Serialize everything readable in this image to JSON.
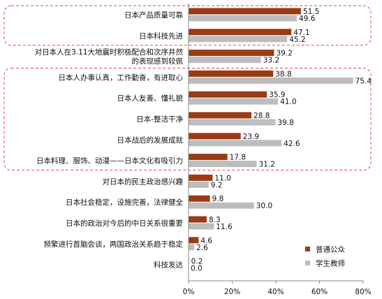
{
  "chart_data": {
    "type": "bar",
    "orientation": "horizontal",
    "title": "",
    "xlabel": "",
    "ylabel": "",
    "xlim": [
      0,
      80
    ],
    "x_ticks": [
      "0%",
      "20%",
      "40%",
      "60%",
      "80%"
    ],
    "categories": [
      [
        "日本产品质量可靠"
      ],
      [
        "日本科技先进"
      ],
      [
        "对日本人在3.11大地震时积极配合和次序井然",
        "的表现感到较佩"
      ],
      [
        "日本人办事认真，工作勤奋，有进取心"
      ],
      [
        "日本人友善、懂礼貌"
      ],
      [
        "日本-整洁干净"
      ],
      [
        "日本战后的发展成就"
      ],
      [
        "日本料理、服饰、动漫——日本文化有吸引力"
      ],
      [
        "对日本的民主政治感兴趣"
      ],
      [
        "日本社会稳定，设施完善，法律健全"
      ],
      [
        "日本的政治对今后的中日关系很重要"
      ],
      [
        "频繁进行首脑会谈，两国政治关系趋于稳定"
      ],
      [
        "科技发达"
      ]
    ],
    "series": [
      {
        "name": "普通公众",
        "color": "#9B3A14",
        "values": [
          51.5,
          47.1,
          39.2,
          38.8,
          35.9,
          28.8,
          23.9,
          17.8,
          11.0,
          9.8,
          8.3,
          4.6,
          0.2
        ],
        "labels": [
          "51.5",
          "47.1",
          "39.2",
          "38.8",
          "35.9",
          "28.8",
          "23.9",
          "17.8",
          "11.0",
          "9.8",
          "8.3",
          "4.6",
          "0.2"
        ]
      },
      {
        "name": "学生教师",
        "color": "#BDBDBD",
        "values": [
          49.6,
          45.2,
          33.2,
          75.4,
          41.0,
          39.8,
          42.6,
          31.2,
          9.2,
          30.0,
          11.6,
          2.6,
          0.0
        ],
        "labels": [
          "49.6",
          "45.2",
          "33.2",
          "75.4",
          "41.0",
          "39.8",
          "42.6",
          "31.2",
          "9.2",
          "30.0",
          "11.6",
          "2.6",
          "0.0"
        ]
      }
    ],
    "highlight_groups": [
      [
        0,
        1
      ],
      [
        3,
        7
      ]
    ],
    "highlight_color": "#E0474C",
    "legend_position": "bottom-right",
    "grid": false
  }
}
